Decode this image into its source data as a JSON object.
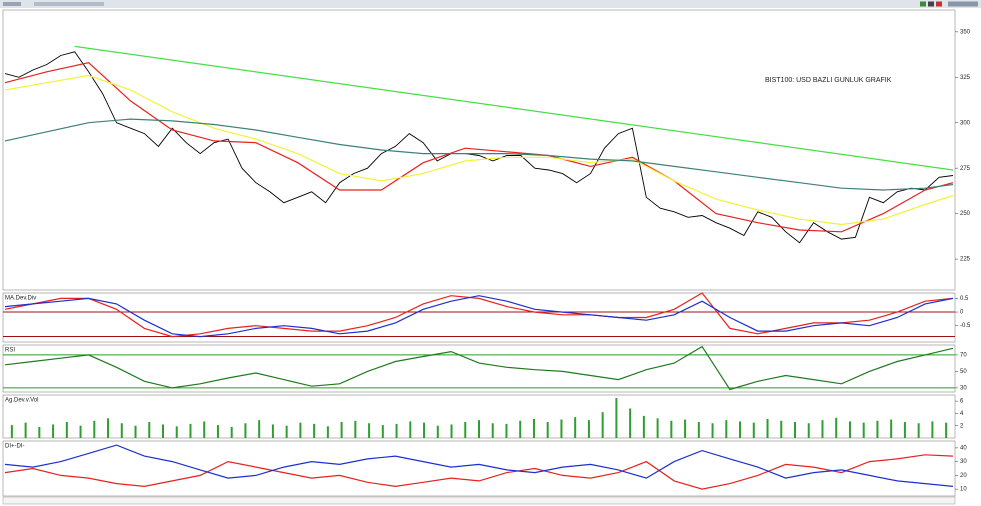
{
  "chart_data": [
    {
      "type": "line",
      "annotation": "BIST100: USD BAZLI GUNLUK GRAFIK",
      "ylim": [
        208,
        362
      ],
      "yticks": [
        225,
        250,
        275,
        300,
        325,
        350
      ],
      "series": [
        {
          "color": "#000000",
          "values": [
            327,
            325,
            329,
            332,
            337,
            339,
            328,
            316,
            300,
            297,
            294,
            287,
            297,
            289,
            283,
            289,
            291,
            275,
            267,
            262,
            256,
            259,
            262,
            256,
            267,
            272,
            275,
            283,
            287,
            294,
            289,
            279,
            283,
            283,
            282,
            279,
            282,
            282,
            275,
            274,
            272,
            267,
            272,
            286,
            294,
            297,
            259,
            253,
            251,
            248,
            249,
            245,
            242,
            238,
            251,
            248,
            240,
            234,
            245,
            240,
            236,
            237,
            259,
            256,
            262,
            264,
            263,
            270,
            271
          ]
        },
        {
          "color": "#e8211d",
          "x": [
            0,
            3,
            6,
            9,
            12,
            15,
            18,
            21,
            24,
            27,
            30,
            33,
            36,
            39,
            42,
            45,
            48,
            51,
            54,
            57,
            60,
            63,
            66,
            68
          ],
          "values": [
            322,
            328,
            333,
            312,
            296,
            290,
            289,
            278,
            263,
            263,
            278,
            286,
            284,
            282,
            276,
            281,
            268,
            250,
            245,
            241,
            240,
            250,
            263,
            267
          ]
        },
        {
          "color": "#f2f23a",
          "x": [
            0,
            3,
            6,
            9,
            12,
            15,
            18,
            21,
            24,
            27,
            30,
            33,
            36,
            39,
            42,
            45,
            48,
            51,
            54,
            57,
            60,
            63,
            66,
            68
          ],
          "values": [
            318,
            322,
            326,
            318,
            306,
            297,
            291,
            283,
            272,
            268,
            272,
            279,
            281,
            281,
            278,
            280,
            268,
            258,
            252,
            247,
            244,
            247,
            255,
            260
          ]
        },
        {
          "color": "#3f7f7a",
          "x": [
            0,
            3,
            6,
            9,
            12,
            15,
            18,
            21,
            24,
            27,
            30,
            33,
            36,
            39,
            42,
            45,
            48,
            51,
            54,
            57,
            60,
            63,
            66,
            68
          ],
          "values": [
            290,
            295,
            300,
            302,
            301,
            299,
            296,
            292,
            288,
            285,
            283,
            283,
            283,
            282,
            280,
            279,
            276,
            273,
            270,
            267,
            264,
            263,
            264,
            266
          ]
        },
        {
          "color": "#44e044",
          "x": [
            5,
            68
          ],
          "values": [
            342,
            274
          ]
        }
      ]
    },
    {
      "type": "line",
      "title": "MA.Dev.Div",
      "ylim": [
        -1.1,
        0.7
      ],
      "yticks": [
        0.5,
        0,
        -0.5
      ],
      "hlines": [
        0,
        -0.9
      ],
      "hline_color": "#a01010",
      "series": [
        {
          "color": "#e8211d",
          "values": [
            0.1,
            0.3,
            0.5,
            0.5,
            0.1,
            -0.6,
            -0.9,
            -0.8,
            -0.6,
            -0.5,
            -0.6,
            -0.7,
            -0.7,
            -0.5,
            -0.2,
            0.3,
            0.6,
            0.5,
            0.2,
            0.0,
            -0.1,
            -0.1,
            -0.2,
            -0.2,
            0.1,
            0.7,
            -0.6,
            -0.8,
            -0.6,
            -0.4,
            -0.4,
            -0.3,
            0.0,
            0.4,
            0.5
          ]
        },
        {
          "color": "#1c2fd0",
          "values": [
            0.2,
            0.3,
            0.4,
            0.5,
            0.3,
            -0.3,
            -0.8,
            -0.9,
            -0.8,
            -0.6,
            -0.5,
            -0.6,
            -0.8,
            -0.7,
            -0.4,
            0.1,
            0.4,
            0.6,
            0.4,
            0.1,
            0.0,
            -0.1,
            -0.2,
            -0.3,
            -0.1,
            0.4,
            -0.2,
            -0.7,
            -0.7,
            -0.5,
            -0.4,
            -0.5,
            -0.2,
            0.3,
            0.5
          ]
        }
      ]
    },
    {
      "type": "line",
      "title": "RSI",
      "ylim": [
        25,
        82
      ],
      "yticks": [
        30,
        50,
        70
      ],
      "hlines": [
        70,
        30
      ],
      "hline_color": "#22a022",
      "series": [
        {
          "color": "#1f7a1f",
          "values": [
            58,
            62,
            66,
            70,
            55,
            38,
            30,
            35,
            42,
            48,
            40,
            32,
            35,
            50,
            62,
            68,
            74,
            60,
            55,
            52,
            50,
            45,
            40,
            52,
            60,
            80,
            28,
            38,
            45,
            40,
            35,
            50,
            62,
            70,
            78
          ]
        }
      ]
    },
    {
      "type": "bar",
      "title": "Ag.Dev.v.Vol",
      "ylim": [
        0,
        7
      ],
      "yticks": [
        2,
        4,
        6
      ],
      "color": "#2e9e2e",
      "values": [
        2.1,
        2.5,
        1.8,
        2.2,
        2.6,
        2.0,
        2.8,
        3.2,
        2.4,
        2.0,
        2.6,
        2.2,
        1.9,
        2.3,
        2.7,
        2.1,
        1.8,
        2.4,
        2.9,
        2.2,
        2.0,
        2.5,
        2.3,
        1.9,
        2.6,
        2.8,
        2.4,
        2.1,
        2.3,
        2.7,
        2.5,
        2.0,
        2.2,
        2.6,
        2.9,
        2.4,
        2.3,
        2.8,
        3.1,
        2.6,
        3.0,
        3.4,
        2.9,
        4.2,
        6.5,
        4.8,
        3.6,
        3.2,
        2.8,
        3.0,
        2.6,
        2.4,
        2.9,
        2.7,
        2.5,
        3.1,
        2.8,
        2.6,
        2.4,
        2.9,
        3.3,
        2.7,
        2.5,
        2.8,
        3.0,
        2.6,
        2.4,
        2.7,
        2.5
      ]
    },
    {
      "type": "line",
      "title": "DI+-DI-",
      "ylim": [
        5,
        45
      ],
      "yticks": [
        10,
        20,
        30,
        40
      ],
      "series": [
        {
          "color": "#e8211d",
          "values": [
            22,
            25,
            20,
            18,
            14,
            12,
            16,
            20,
            30,
            26,
            22,
            18,
            20,
            15,
            12,
            15,
            18,
            16,
            22,
            25,
            20,
            18,
            22,
            30,
            16,
            10,
            14,
            20,
            28,
            26,
            22,
            30,
            32,
            35,
            34
          ]
        },
        {
          "color": "#1c2fd0",
          "values": [
            28,
            26,
            30,
            36,
            42,
            34,
            30,
            24,
            18,
            20,
            26,
            30,
            28,
            32,
            34,
            30,
            26,
            28,
            24,
            22,
            26,
            28,
            24,
            18,
            30,
            38,
            32,
            26,
            18,
            22,
            24,
            20,
            16,
            14,
            12
          ]
        }
      ]
    }
  ]
}
